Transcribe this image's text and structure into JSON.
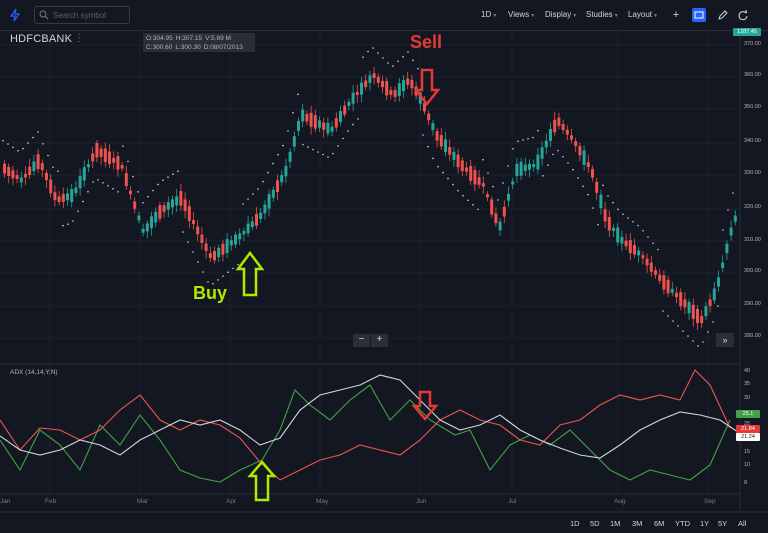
{
  "topbar": {
    "search_placeholder": "Search symbol",
    "interval": "1D",
    "menus": [
      "Views",
      "Display",
      "Studies",
      "Layout"
    ],
    "tools": [
      "plus-icon",
      "screenshot-icon",
      "pencil-icon",
      "refresh-icon"
    ]
  },
  "symbol": {
    "name": "HDFCBANK",
    "menu": "⋮"
  },
  "ohlc": {
    "o": "O:304.95",
    "h": "H:307.15",
    "v": "V:5.69 M",
    "c": "C:300.60",
    "l": "L:300.30",
    "d": "D:08/07/2013"
  },
  "annotations": {
    "sell": "Sell",
    "buy": "Buy"
  },
  "price_axis": {
    "last_price": "1287.45",
    "ticks": [
      "370.00",
      "360.00",
      "350.00",
      "340.00",
      "330.00",
      "320.00",
      "310.00",
      "300.00",
      "290.00",
      "280.00"
    ]
  },
  "nav_buttons": {
    "minus": "−",
    "plus": "+",
    "fast_forward": "»"
  },
  "indicator": {
    "label": "ADX (14,14,Y,N)",
    "ticks": [
      "40",
      "35",
      "30",
      "25",
      "20",
      "15",
      "10",
      "8"
    ],
    "tag_green": "25.1",
    "tag_red": "21.84",
    "tag_white": "21.24"
  },
  "time_axis": {
    "months": [
      "Jan",
      "Feb",
      "Mar",
      "Apr",
      "May",
      "Jun",
      "Jul",
      "Aug",
      "Sep"
    ]
  },
  "periods": [
    "1D",
    "5D",
    "1M",
    "3M",
    "6M",
    "YTD",
    "1Y",
    "5Y",
    "All"
  ],
  "colors": {
    "up": "#26a69a",
    "down": "#ef5350",
    "accent": "#2962ff",
    "sell": "#e53935",
    "buy": "#aeea00"
  }
}
